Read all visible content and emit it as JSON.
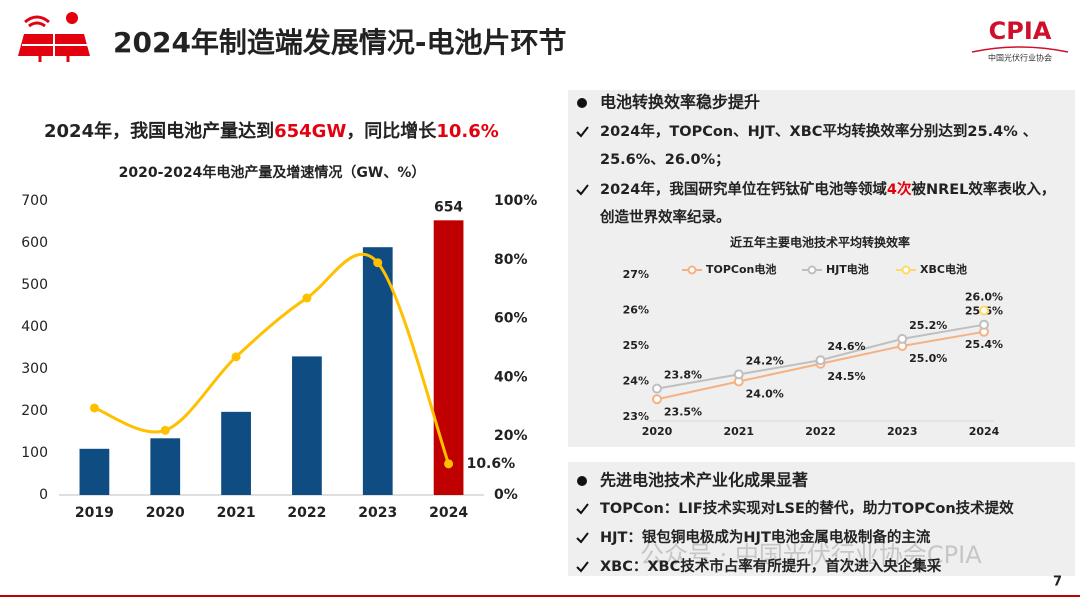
{
  "header": {
    "title": "2024年制造端发展情况-电池片环节",
    "logo": "CPIA",
    "logo_subtitle": "中国光伏行业协会"
  },
  "headline": [
    {
      "text": "2024年，我国电池产量达到"
    },
    {
      "text": "654GW",
      "color": "#e3000f"
    },
    {
      "text": "，同比增长"
    },
    {
      "text": "10.6%",
      "color": "#e3000f"
    }
  ],
  "section1": {
    "heading": "电池转换效率稳步提升",
    "items": [
      [
        [
          {
            "text": "2024年，TOPCon、HJT、XBC平均转换效率分别达到25.4% 、"
          }
        ],
        [
          {
            "text": "25.6%、26.0%；"
          }
        ]
      ],
      [
        [
          {
            "text": "2024年，我国研究单位在钙钛矿电池等领域"
          },
          {
            "text": "4次",
            "color": "#e3000f"
          },
          {
            "text": "被NREL效率表收入，"
          }
        ],
        [
          {
            "text": "创造世界效率纪录。"
          }
        ]
      ]
    ]
  },
  "section2": {
    "heading": "先进电池技术产业化成果显著",
    "items": [
      [
        [
          {
            "text": "TOPCon：LIF技术实现对LSE的替代，助力TOPCon技术提效"
          }
        ]
      ],
      [
        [
          {
            "text": "HJT：银包铜电极成为HJT电池金属电极制备的主流"
          }
        ]
      ],
      [
        [
          {
            "text": "XBC：XBC技术市占率有所提升，首次进入央企集采"
          }
        ]
      ]
    ]
  },
  "watermark": "公众号 · 中国光伏行业协会CPIA",
  "page_number": 7,
  "chart_data": [
    {
      "type": "combo",
      "title": "2020-2024年电池产量及增速情况（GW、%）",
      "categories": [
        "2019",
        "2020",
        "2021",
        "2022",
        "2023",
        "2024"
      ],
      "series": [
        {
          "colors": [
            "#0f4c81",
            "#0f4c81",
            "#0f4c81",
            "#0f4c81",
            "#0f4c81",
            "#c00000"
          ],
          "values": [
            110,
            135,
            198,
            330,
            590,
            654
          ],
          "value_labels": [
            null,
            null,
            null,
            null,
            null,
            "654"
          ]
        },
        {
          "axis": "y2",
          "color": "#ffc000",
          "values": [
            29.6,
            22,
            47,
            67,
            79,
            10.6
          ],
          "value_labels": [
            null,
            null,
            null,
            null,
            null,
            "10.6%"
          ]
        }
      ],
      "ylim": [
        0,
        700
      ],
      "yticks": [
        0,
        100,
        200,
        300,
        400,
        500,
        600,
        700
      ],
      "y2lim": [
        0,
        100
      ],
      "y2ticks": [
        {
          "value": 0,
          "label": "0%"
        },
        {
          "value": 20,
          "label": "20%"
        },
        {
          "value": 40,
          "label": "40%"
        },
        {
          "value": 60,
          "label": "60%"
        },
        {
          "value": 80,
          "label": "80%"
        },
        {
          "value": 100,
          "label": "100%"
        }
      ]
    },
    {
      "type": "line",
      "title": "近五年主要电池技术平均转换效率",
      "categories": [
        "2020",
        "2021",
        "2022",
        "2023",
        "2024"
      ],
      "series": [
        {
          "name": "TOPCon电池",
          "color": "#f4b183",
          "values": [
            23.5,
            24.0,
            24.5,
            25.0,
            25.4
          ],
          "value_labels": [
            "23.5%",
            "24.0%",
            "24.5%",
            "25.0%",
            "25.4%"
          ]
        },
        {
          "name": "HJT电池",
          "color": "#bfbfbf",
          "values": [
            23.8,
            24.2,
            24.6,
            25.2,
            25.6
          ],
          "value_labels": [
            "23.8%",
            "24.2%",
            "24.6%",
            "25.2%",
            "25.6%"
          ]
        },
        {
          "name": "XBC电池",
          "color": "#ffd966",
          "values": [
            null,
            null,
            null,
            null,
            26.0
          ],
          "value_labels": [
            null,
            null,
            null,
            null,
            "26.0%"
          ]
        }
      ],
      "ylim": [
        23,
        27
      ],
      "yticks": [
        {
          "value": 23,
          "label": "23%"
        },
        {
          "value": 24,
          "label": "24%"
        },
        {
          "value": 25,
          "label": "25%"
        },
        {
          "value": 26,
          "label": "26%"
        },
        {
          "value": 27,
          "label": "27%"
        }
      ],
      "legend": "top",
      "grid": false
    }
  ]
}
